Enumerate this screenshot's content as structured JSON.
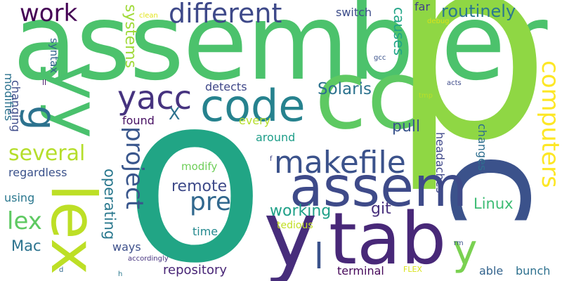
{
  "background": "#ffffff",
  "words": [
    {
      "text": "assembler",
      "color": "#4cc26c",
      "vertical": false
    },
    {
      "text": "o",
      "color": "#21a585",
      "vertical": false
    },
    {
      "text": "p",
      "color": "#8fd744",
      "vertical": false
    },
    {
      "text": "cc",
      "color": "#5ec962",
      "vertical": false
    },
    {
      "text": "c",
      "color": "#3b528b",
      "vertical": true
    },
    {
      "text": "yy",
      "color": "#4ac16d",
      "vertical": true
    },
    {
      "text": "lex",
      "color": "#bddf26",
      "vertical": true
    },
    {
      "text": "g",
      "color": "#2c728e",
      "vertical": true
    },
    {
      "text": "y",
      "color": "#472d7b",
      "vertical": false
    },
    {
      "text": "tab",
      "color": "#482878",
      "vertical": false
    },
    {
      "text": "assem",
      "color": "#3e4a89",
      "vertical": false
    },
    {
      "text": "code",
      "color": "#26828e",
      "vertical": false
    },
    {
      "text": "yacc",
      "color": "#46337f",
      "vertical": false
    },
    {
      "text": "makefile",
      "color": "#3b528b",
      "vertical": false
    },
    {
      "text": "different",
      "color": "#3e4989",
      "vertical": false
    },
    {
      "text": "work",
      "color": "#440154",
      "vertical": false
    },
    {
      "text": "several",
      "color": "#b5de2b",
      "vertical": false
    },
    {
      "text": "project",
      "color": "#39568c",
      "vertical": true
    },
    {
      "text": "computers",
      "color": "#fde725",
      "vertical": true
    },
    {
      "text": "systems",
      "color": "#a0da39",
      "vertical": true
    },
    {
      "text": "pre",
      "color": "#31688e",
      "vertical": false
    },
    {
      "text": "lex",
      "color": "#5ec962",
      "vertical": false
    },
    {
      "text": "routinely",
      "color": "#2a788e",
      "vertical": false
    },
    {
      "text": "Solaris",
      "color": "#2c728e",
      "vertical": false
    },
    {
      "text": "remote",
      "color": "#3e4a89",
      "vertical": false
    },
    {
      "text": "y",
      "color": "#7ad151",
      "vertical": false
    },
    {
      "text": "l",
      "color": "#3b528b",
      "vertical": false
    },
    {
      "text": "Linux",
      "color": "#3dbc74",
      "vertical": false
    },
    {
      "text": "working",
      "color": "#1fa088",
      "vertical": false
    },
    {
      "text": "pull",
      "color": "#3a548c",
      "vertical": false
    },
    {
      "text": "git",
      "color": "#472f7d",
      "vertical": false
    },
    {
      "text": "operating",
      "color": "#2a788e",
      "vertical": true
    },
    {
      "text": "Mac",
      "color": "#2c738e",
      "vertical": false
    },
    {
      "text": "X",
      "color": "#2c728e",
      "vertical": false
    },
    {
      "text": "switch",
      "color": "#3d4d8a",
      "vertical": false
    },
    {
      "text": "far",
      "color": "#414287",
      "vertical": false
    },
    {
      "text": "causes",
      "color": "#20a486",
      "vertical": true
    },
    {
      "text": "detects",
      "color": "#3f4788",
      "vertical": false
    },
    {
      "text": "found",
      "color": "#471063",
      "vertical": false
    },
    {
      "text": "every",
      "color": "#b5de2b",
      "vertical": false
    },
    {
      "text": "around",
      "color": "#1f9e89",
      "vertical": false
    },
    {
      "text": "modify",
      "color": "#6ece58",
      "vertical": false
    },
    {
      "text": "regardless",
      "color": "#3b528b",
      "vertical": false
    },
    {
      "text": "using",
      "color": "#2a778e",
      "vertical": false
    },
    {
      "text": "time",
      "color": "#23898e",
      "vertical": false
    },
    {
      "text": "ways",
      "color": "#3c4f8a",
      "vertical": false
    },
    {
      "text": "repository",
      "color": "#482576",
      "vertical": false
    },
    {
      "text": "terminal",
      "color": "#46075a",
      "vertical": false
    },
    {
      "text": "able",
      "color": "#33638d",
      "vertical": false
    },
    {
      "text": "bunch",
      "color": "#2d708e",
      "vertical": false
    },
    {
      "text": "tedious",
      "color": "#c2df23",
      "vertical": false
    },
    {
      "text": "changes",
      "color": "#2e6e8e",
      "vertical": true
    },
    {
      "text": "headaches",
      "color": "#3f4889",
      "vertical": true
    },
    {
      "text": "syntax",
      "color": "#33638d",
      "vertical": true
    },
    {
      "text": "modifies",
      "color": "#2c728e",
      "vertical": true
    },
    {
      "text": "changing",
      "color": "#3e4c8a",
      "vertical": true
    },
    {
      "text": "accordingly",
      "color": "#46337f",
      "vertical": false
    },
    {
      "text": "clean",
      "color": "#e2e418",
      "vertical": false
    },
    {
      "text": "debug",
      "color": "#d8e219",
      "vertical": false
    },
    {
      "text": "gcc",
      "color": "#3b528b",
      "vertical": false
    },
    {
      "text": "ll",
      "color": "#481467",
      "vertical": false
    },
    {
      "text": "tmp",
      "color": "#b8de29",
      "vertical": false
    },
    {
      "text": "acts",
      "color": "#3e4a89",
      "vertical": false
    },
    {
      "text": "f",
      "color": "#414487",
      "vertical": false
    },
    {
      "text": "rm",
      "color": "#3b528b",
      "vertical": false
    },
    {
      "text": "FLEX",
      "color": "#d8e219",
      "vertical": false
    },
    {
      "text": "d",
      "color": "#31688e",
      "vertical": false
    },
    {
      "text": "h",
      "color": "#2a788e",
      "vertical": false
    }
  ]
}
